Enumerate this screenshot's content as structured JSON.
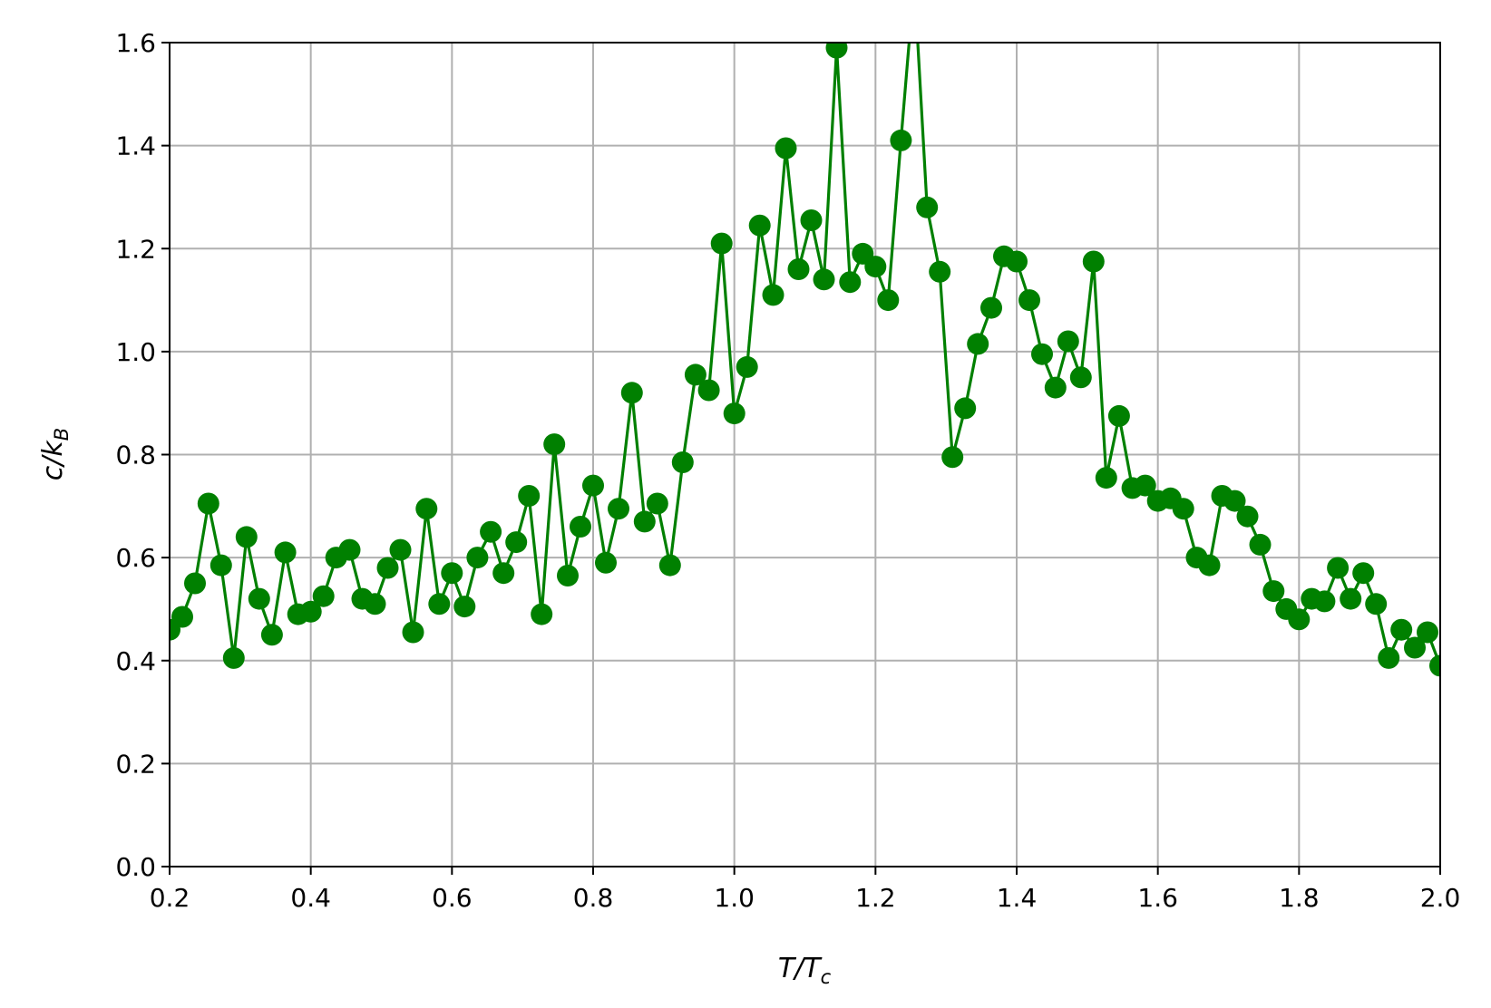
{
  "chart_data": {
    "type": "line",
    "title": "",
    "xlabel": {
      "main": "T/T",
      "sub": "c"
    },
    "ylabel": {
      "main": "c/k",
      "sub": "B"
    },
    "xlim": [
      0.2,
      2.0
    ],
    "ylim": [
      0.0,
      1.6
    ],
    "xticks": [
      "0.2",
      "0.4",
      "0.6",
      "0.8",
      "1.0",
      "1.2",
      "1.4",
      "1.6",
      "1.8",
      "2.0"
    ],
    "yticks": [
      "0.0",
      "0.2",
      "0.4",
      "0.6",
      "0.8",
      "1.0",
      "1.2",
      "1.4",
      "1.6"
    ],
    "grid": true,
    "legend": "none",
    "series": [
      {
        "color": "#008000",
        "marker": "circle",
        "x": [
          0.2,
          0.218,
          0.236,
          0.255,
          0.273,
          0.291,
          0.309,
          0.327,
          0.345,
          0.364,
          0.382,
          0.4,
          0.418,
          0.436,
          0.455,
          0.473,
          0.491,
          0.509,
          0.527,
          0.545,
          0.564,
          0.582,
          0.6,
          0.618,
          0.636,
          0.655,
          0.673,
          0.691,
          0.709,
          0.727,
          0.745,
          0.764,
          0.782,
          0.8,
          0.818,
          0.836,
          0.855,
          0.873,
          0.891,
          0.909,
          0.927,
          0.945,
          0.964,
          0.982,
          1.0,
          1.018,
          1.036,
          1.055,
          1.073,
          1.091,
          1.109,
          1.127,
          1.145,
          1.164,
          1.182,
          1.2,
          1.218,
          1.236,
          1.255,
          1.273,
          1.291,
          1.309,
          1.327,
          1.345,
          1.364,
          1.382,
          1.4,
          1.418,
          1.436,
          1.455,
          1.473,
          1.491,
          1.509,
          1.527,
          1.545,
          1.564,
          1.582,
          1.6,
          1.618,
          1.636,
          1.655,
          1.673,
          1.691,
          1.709,
          1.727,
          1.745,
          1.764,
          1.782,
          1.8,
          1.818,
          1.836,
          1.855,
          1.873,
          1.891,
          1.909,
          1.927,
          1.945,
          1.964,
          1.982,
          2.0
        ],
        "y": [
          0.46,
          0.485,
          0.55,
          0.705,
          0.585,
          0.405,
          0.64,
          0.52,
          0.45,
          0.61,
          0.49,
          0.495,
          0.525,
          0.6,
          0.615,
          0.52,
          0.51,
          0.58,
          0.615,
          0.455,
          0.695,
          0.51,
          0.57,
          0.505,
          0.6,
          0.65,
          0.57,
          0.63,
          0.72,
          0.49,
          0.82,
          0.565,
          0.66,
          0.74,
          0.59,
          0.695,
          0.92,
          0.67,
          0.705,
          0.585,
          0.785,
          0.955,
          0.925,
          1.21,
          0.88,
          0.97,
          1.245,
          1.11,
          1.395,
          1.16,
          1.255,
          1.14,
          1.59,
          1.135,
          1.19,
          1.165,
          1.1,
          1.41,
          1.72,
          1.28,
          1.155,
          0.795,
          0.89,
          1.015,
          1.085,
          1.185,
          1.175,
          1.1,
          0.995,
          0.93,
          1.02,
          0.95,
          1.175,
          0.755,
          0.875,
          0.735,
          0.74,
          0.71,
          0.715,
          0.695,
          0.6,
          0.585,
          0.72,
          0.71,
          0.68,
          0.625,
          0.535,
          0.5,
          0.48,
          0.52,
          0.515,
          0.58,
          0.52,
          0.57,
          0.51,
          0.405,
          0.46,
          0.425,
          0.455,
          0.39
        ]
      }
    ]
  }
}
